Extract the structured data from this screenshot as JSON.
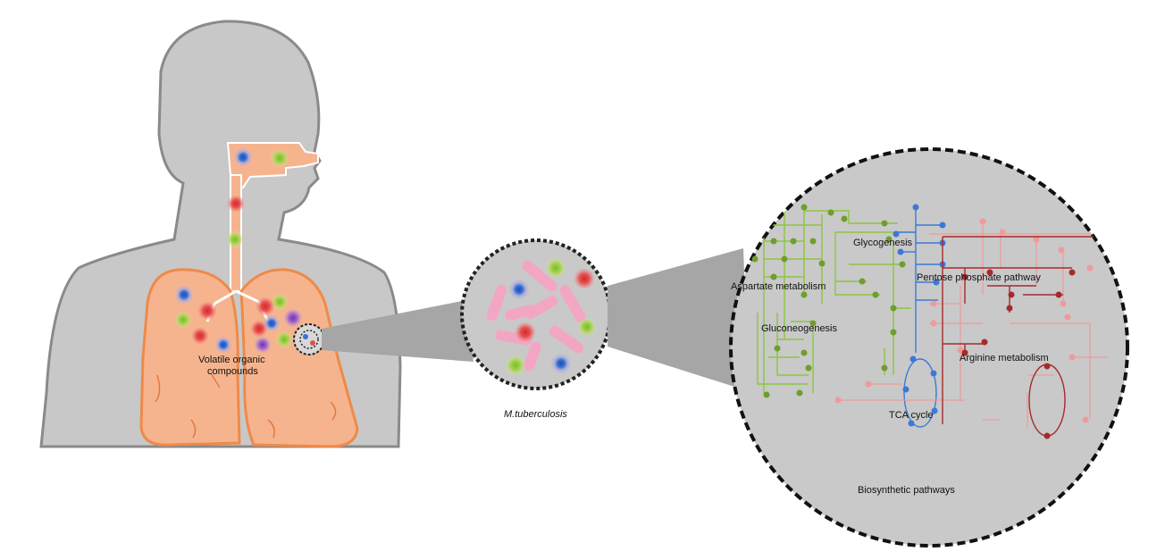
{
  "labels": {
    "voc_line1": "Volatile organic",
    "voc_line2": "compounds",
    "bacterium": "M.tuberculosis",
    "glycogenesis": "Glycogenesis",
    "aspartate": "Aspartate  metabolism",
    "pentose": "Pentose phosphate pathway",
    "gluconeogenesis": "Gluconeogenesis",
    "arginine": "Arginine metabolism",
    "tca": "TCA cycle",
    "biosynthetic": "Biosynthetic pathways"
  },
  "colors": {
    "body_fill": "#c8c8c8",
    "body_outline": "#8a8a8a",
    "lung_fill": "#f6b48e",
    "lung_outline": "#ee8a4a",
    "circle_fill": "#c9c9c9",
    "bacillus": "#f3a6c4",
    "voc_blue": "#2e63c8",
    "voc_red": "#e0443c",
    "voc_green": "#94c83c",
    "voc_purple": "#8a48b0",
    "pathway_green": "#8cc63e",
    "pathway_blue": "#3c78d8",
    "pathway_pink": "#f09a9a",
    "pathway_darkred": "#a52b2b"
  }
}
